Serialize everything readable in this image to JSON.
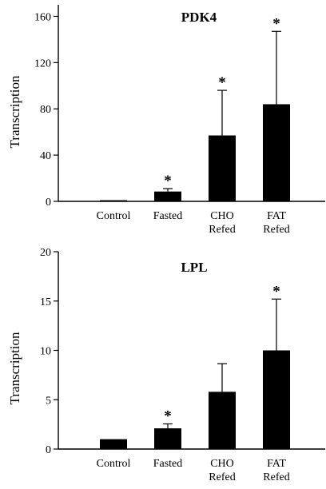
{
  "chart_data": [
    {
      "type": "bar",
      "title": "PDK4",
      "xlabel": "",
      "ylabel": "Transcription",
      "ylim": [
        0,
        170
      ],
      "yticks": [
        0,
        40,
        80,
        120,
        160
      ],
      "categories": [
        [
          "Control"
        ],
        [
          "Fasted"
        ],
        [
          "CHO",
          "Refed"
        ],
        [
          "FAT",
          "Refed"
        ]
      ],
      "values": [
        1,
        8.5,
        57,
        84
      ],
      "error_upper": [
        0,
        2.5,
        39,
        63
      ],
      "significance": [
        "",
        "*",
        "*",
        "*"
      ],
      "grid": false,
      "bar_color": "#000000"
    },
    {
      "type": "bar",
      "title": "LPL",
      "xlabel": "",
      "ylabel": "Transcription",
      "ylim": [
        0,
        20
      ],
      "yticks": [
        0,
        5,
        10,
        15,
        20
      ],
      "categories": [
        [
          "Control"
        ],
        [
          "Fasted"
        ],
        [
          "CHO",
          "Refed"
        ],
        [
          "FAT",
          "Refed"
        ]
      ],
      "values": [
        1,
        2.1,
        5.8,
        10
      ],
      "error_upper": [
        0,
        0.45,
        2.85,
        5.2
      ],
      "significance": [
        "",
        "*",
        "",
        "*"
      ],
      "grid": false,
      "bar_color": "#000000"
    }
  ]
}
